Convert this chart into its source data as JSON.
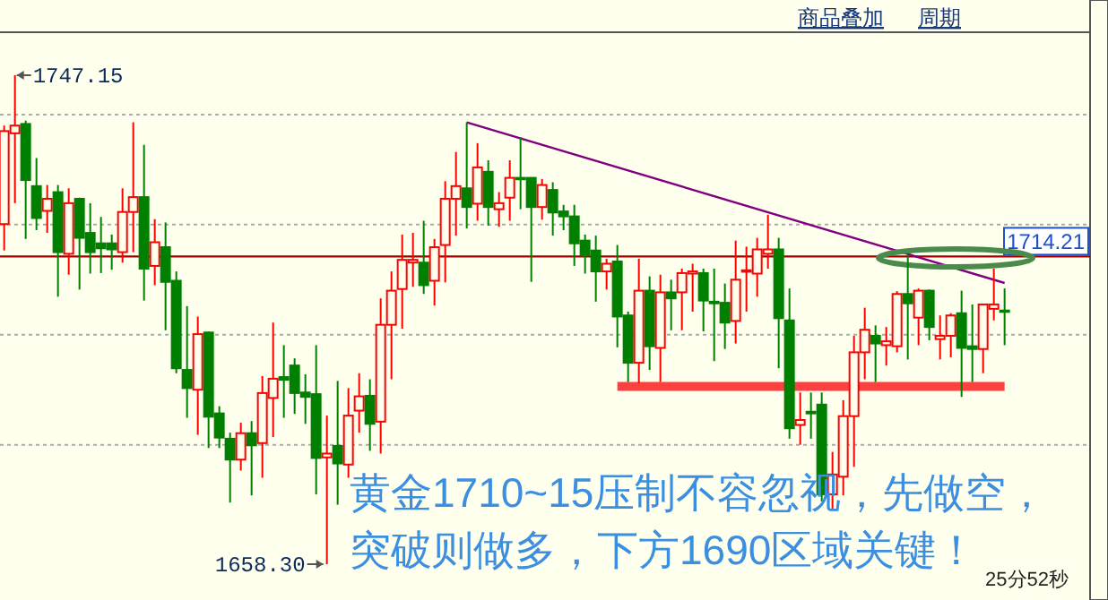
{
  "chart_data": {
    "type": "candlestick",
    "categories": [
      null,
      null,
      null,
      null,
      null,
      null,
      null,
      null,
      null,
      null,
      null,
      null,
      null,
      null,
      null,
      null,
      null,
      null,
      null,
      null,
      null,
      null,
      null,
      null,
      null,
      null,
      null,
      null,
      null,
      null,
      null,
      null,
      null,
      null,
      null,
      null,
      null,
      null,
      null,
      null,
      null,
      null,
      null,
      null,
      null,
      null,
      null,
      null,
      null,
      null,
      null,
      null,
      null,
      null,
      null,
      null,
      null,
      null,
      null,
      null,
      null,
      null,
      null,
      null,
      null,
      null,
      null,
      null,
      null,
      null,
      null,
      null,
      null,
      null,
      null,
      null,
      null,
      null,
      null,
      null,
      null,
      null,
      null,
      null,
      null,
      null,
      null,
      null,
      null,
      null,
      null,
      null,
      null,
      null
    ],
    "ohlc": [
      [
        1720.1,
        1738.0,
        1715.3,
        1737.0
      ],
      [
        1736.6,
        1747.15,
        1723.9,
        1738.0
      ],
      [
        1738.3,
        1738.9,
        1717.4,
        1728.1
      ],
      [
        1727.0,
        1732.1,
        1719.0,
        1721.2
      ],
      [
        1722.5,
        1727.2,
        1718.5,
        1724.7
      ],
      [
        1725.9,
        1727.2,
        1706.9,
        1715.0
      ],
      [
        1714.7,
        1726.6,
        1710.9,
        1723.9
      ],
      [
        1724.7,
        1724.9,
        1708.2,
        1717.6
      ],
      [
        1718.5,
        1723.9,
        1711.1,
        1715.0
      ],
      [
        1716.6,
        1721.4,
        1711.2,
        1715.7
      ],
      [
        1716.6,
        1718.2,
        1711.8,
        1715.5
      ],
      [
        1715.0,
        1726.6,
        1713.1,
        1722.3
      ],
      [
        1722.3,
        1738.6,
        1715.0,
        1725.0
      ],
      [
        1725.0,
        1734.5,
        1706.2,
        1712.0
      ],
      [
        1712.5,
        1721.0,
        1709.0,
        1716.8
      ],
      [
        1715.9,
        1720.4,
        1700.8,
        1709.6
      ],
      [
        1709.8,
        1711.5,
        1693.0,
        1693.9
      ],
      [
        1693.6,
        1705.2,
        1684.9,
        1690.3
      ],
      [
        1690.0,
        1703.3,
        1681.8,
        1700.1
      ],
      [
        1700.4,
        1700.6,
        1679.4,
        1685.1
      ],
      [
        1685.7,
        1687.0,
        1679.4,
        1681.3
      ],
      [
        1681.1,
        1682.2,
        1669.5,
        1677.3
      ],
      [
        1677.3,
        1684.0,
        1675.3,
        1682.1
      ],
      [
        1682.1,
        1684.3,
        1670.8,
        1679.9
      ],
      [
        1680.3,
        1692.5,
        1674.0,
        1689.4
      ],
      [
        1688.5,
        1702.2,
        1681.4,
        1692.0
      ],
      [
        1692.3,
        1698.1,
        1684.9,
        1691.8
      ],
      [
        1694.4,
        1695.7,
        1685.6,
        1689.4
      ],
      [
        1689.5,
        1692.8,
        1683.8,
        1688.7
      ],
      [
        1689.2,
        1698.1,
        1671.0,
        1677.6
      ],
      [
        1677.7,
        1685.3,
        1658.3,
        1678.4
      ],
      [
        1679.8,
        1691.6,
        1669.1,
        1676.6
      ],
      [
        1676.4,
        1690.3,
        1674.0,
        1685.3
      ],
      [
        1686.2,
        1693.0,
        1682.2,
        1688.8
      ],
      [
        1688.9,
        1691.9,
        1678.9,
        1683.8
      ],
      [
        1684.2,
        1706.6,
        1678.4,
        1701.8
      ],
      [
        1701.8,
        1711.5,
        1691.9,
        1708.0
      ],
      [
        1708.3,
        1718.2,
        1701.1,
        1713.6
      ],
      [
        1713.1,
        1718.5,
        1708.7,
        1713.6
      ],
      [
        1713.1,
        1720.7,
        1707.4,
        1709.0
      ],
      [
        1709.8,
        1717.4,
        1705.3,
        1715.9
      ],
      [
        1716.3,
        1727.9,
        1709.5,
        1724.7
      ],
      [
        1724.7,
        1733.2,
        1718.0,
        1727.0
      ],
      [
        1726.6,
        1738.6,
        1719.3,
        1723.2
      ],
      [
        1723.8,
        1734.8,
        1720.7,
        1730.4
      ],
      [
        1729.6,
        1731.7,
        1719.8,
        1723.2
      ],
      [
        1722.8,
        1725.9,
        1719.6,
        1723.9
      ],
      [
        1724.9,
        1731.7,
        1720.7,
        1728.5
      ],
      [
        1728.5,
        1735.9,
        1722.8,
        1728.3
      ],
      [
        1728.5,
        1728.6,
        1709.6,
        1723.2
      ],
      [
        1723.2,
        1728.3,
        1720.9,
        1727.2
      ],
      [
        1726.3,
        1727.7,
        1718.0,
        1722.2
      ],
      [
        1722.4,
        1723.6,
        1719.0,
        1721.5
      ],
      [
        1721.5,
        1723.6,
        1712.5,
        1716.6
      ],
      [
        1717.1,
        1718.2,
        1711.1,
        1714.4
      ],
      [
        1715.3,
        1718.0,
        1706.0,
        1711.5
      ],
      [
        1711.5,
        1713.8,
        1708.2,
        1712.9
      ],
      [
        1713.3,
        1716.3,
        1697.7,
        1703.3
      ],
      [
        1703.5,
        1704.2,
        1691.4,
        1694.9
      ],
      [
        1694.9,
        1713.8,
        1691.2,
        1708.0
      ],
      [
        1708.0,
        1710.6,
        1693.6,
        1697.9
      ],
      [
        1697.6,
        1710.9,
        1691.4,
        1707.7
      ],
      [
        1707.7,
        1710.0,
        1700.8,
        1706.6
      ],
      [
        1707.7,
        1712.0,
        1700.8,
        1711.2
      ],
      [
        1711.1,
        1712.9,
        1704.2,
        1711.5
      ],
      [
        1711.2,
        1712.0,
        1700.6,
        1706.2
      ],
      [
        1706.0,
        1712.0,
        1695.2,
        1705.7
      ],
      [
        1705.8,
        1709.3,
        1697.4,
        1702.2
      ],
      [
        1702.5,
        1717.1,
        1698.4,
        1710.0
      ],
      [
        1711.5,
        1716.0,
        1704.2,
        1711.7
      ],
      [
        1711.1,
        1717.6,
        1706.9,
        1715.5
      ],
      [
        1714.7,
        1721.8,
        1712.0,
        1715.5
      ],
      [
        1715.5,
        1717.6,
        1693.9,
        1703.0
      ],
      [
        1702.6,
        1708.4,
        1681.1,
        1683.0
      ],
      [
        1683.6,
        1689.5,
        1680.0,
        1684.5
      ],
      [
        1686.0,
        1689.5,
        1681.1,
        1685.7
      ],
      [
        1687.3,
        1689.5,
        1669.7,
        1671.0
      ],
      [
        1671.0,
        1678.7,
        1668.4,
        1674.6
      ],
      [
        1674.2,
        1688.1,
        1670.8,
        1685.2
      ],
      [
        1685.2,
        1699.8,
        1676.0,
        1696.8
      ],
      [
        1696.8,
        1704.9,
        1691.9,
        1700.9
      ],
      [
        1699.8,
        1701.7,
        1691.4,
        1698.4
      ],
      [
        1698.1,
        1701.4,
        1694.4,
        1698.8
      ],
      [
        1697.9,
        1707.9,
        1696.8,
        1707.4
      ],
      [
        1707.4,
        1714.5,
        1695.5,
        1705.7
      ],
      [
        1703.1,
        1708.4,
        1698.1,
        1708.0
      ],
      [
        1708.0,
        1708.2,
        1699.0,
        1701.4
      ],
      [
        1699.2,
        1703.5,
        1695.5,
        1699.8
      ],
      [
        1699.8,
        1703.9,
        1695.9,
        1703.5
      ],
      [
        1703.9,
        1708.0,
        1688.7,
        1697.6
      ],
      [
        1697.9,
        1705.5,
        1691.4,
        1697.4
      ],
      [
        1697.4,
        1705.5,
        1693.0,
        1705.5
      ],
      [
        1704.7,
        1712.0,
        1702.6,
        1705.5
      ],
      [
        1704.4,
        1708.4,
        1698.1,
        1704.3
      ]
    ],
    "series": [
      {
        "type": "line",
        "color": "#800080",
        "values": [
          null,
          null,
          null,
          null,
          null,
          null,
          null,
          null,
          null,
          null,
          null,
          null,
          null,
          null,
          null,
          null,
          null,
          null,
          null,
          null,
          null,
          null,
          null,
          null,
          null,
          null,
          null,
          null,
          null,
          null,
          null,
          null,
          null,
          null,
          null,
          null,
          null,
          null,
          null,
          null,
          null,
          null,
          null,
          1738.6,
          null,
          null,
          null,
          null,
          null,
          null,
          null,
          null,
          null,
          null,
          null,
          null,
          null,
          null,
          null,
          null,
          null,
          null,
          null,
          null,
          null,
          null,
          null,
          null,
          null,
          null,
          null,
          null,
          null,
          null,
          null,
          null,
          null,
          null,
          null,
          null,
          null,
          null,
          null,
          null,
          null,
          null,
          null,
          null,
          null,
          null,
          null,
          null,
          null,
          1709.4
        ]
      },
      {
        "type": "line",
        "color": "#ff4040",
        "values": [
          null,
          null,
          null,
          null,
          null,
          null,
          null,
          null,
          null,
          null,
          null,
          null,
          null,
          null,
          null,
          null,
          null,
          null,
          null,
          null,
          null,
          null,
          null,
          null,
          null,
          null,
          null,
          null,
          null,
          null,
          null,
          null,
          null,
          null,
          null,
          null,
          null,
          null,
          null,
          null,
          null,
          null,
          null,
          null,
          null,
          null,
          null,
          null,
          null,
          null,
          null,
          null,
          null,
          null,
          null,
          null,
          null,
          1690.6,
          null,
          null,
          null,
          null,
          null,
          null,
          null,
          null,
          null,
          null,
          null,
          null,
          null,
          null,
          null,
          null,
          null,
          null,
          null,
          null,
          null,
          null,
          null,
          null,
          null,
          null,
          null,
          null,
          null,
          null,
          null,
          null,
          null,
          null,
          null,
          1690.6
        ]
      }
    ],
    "yticks": [
      {
        "value": 1680,
        "label": null
      },
      {
        "value": 1700,
        "label": null
      },
      {
        "value": 1720,
        "label": null
      },
      {
        "value": 1740,
        "label": null
      }
    ],
    "grid": "y",
    "ref_lines": [
      {
        "axis": "y",
        "value": 1714.21,
        "label": "1714.21",
        "color": "#a00000"
      }
    ],
    "annotations": [
      "1747.15",
      "1658.30",
      "黄金1710~15压制不容忽视，先做空，",
      "突破则做多，下方1690区域关键！",
      "25分52秒",
      "商品叠加",
      "周期"
    ]
  }
}
